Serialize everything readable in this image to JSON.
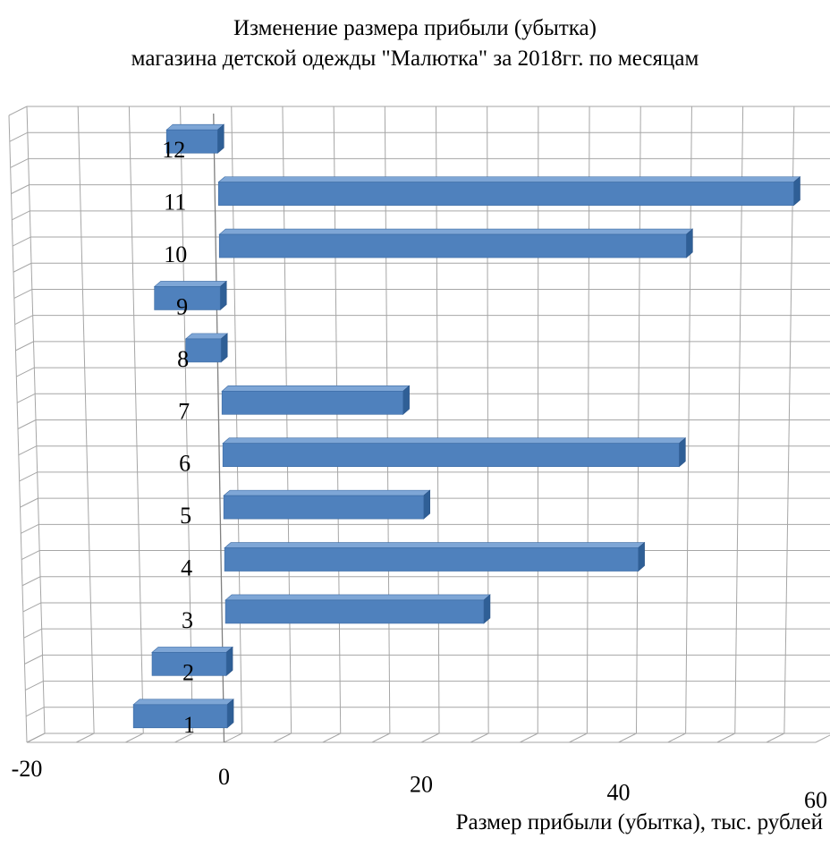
{
  "chart_data": {
    "type": "bar",
    "orientation": "horizontal",
    "style": "3d",
    "title": "Изменение размера прибыли (убытка)",
    "subtitle": "магазина детской одежды \"Малютка\" за 2018гг. по месяцам",
    "xlabel": "Размер прибыли (убытка), тыс. рублей",
    "ylabel": "",
    "xlim": [
      -20,
      60
    ],
    "x_ticks": [
      "-20",
      "0",
      "20",
      "40",
      "60"
    ],
    "grid": true,
    "categories": [
      "1",
      "2",
      "3",
      "4",
      "5",
      "6",
      "7",
      "8",
      "9",
      "10",
      "11",
      "12"
    ],
    "values": [
      -9.5,
      -7.5,
      26,
      41.5,
      20,
      45.5,
      18,
      -3.5,
      -6.5,
      46,
      56.5,
      -5
    ],
    "bar_color": "#4f81bd",
    "bar_top_color": "#7ea6d6",
    "bar_side_color": "#2f5f96"
  }
}
